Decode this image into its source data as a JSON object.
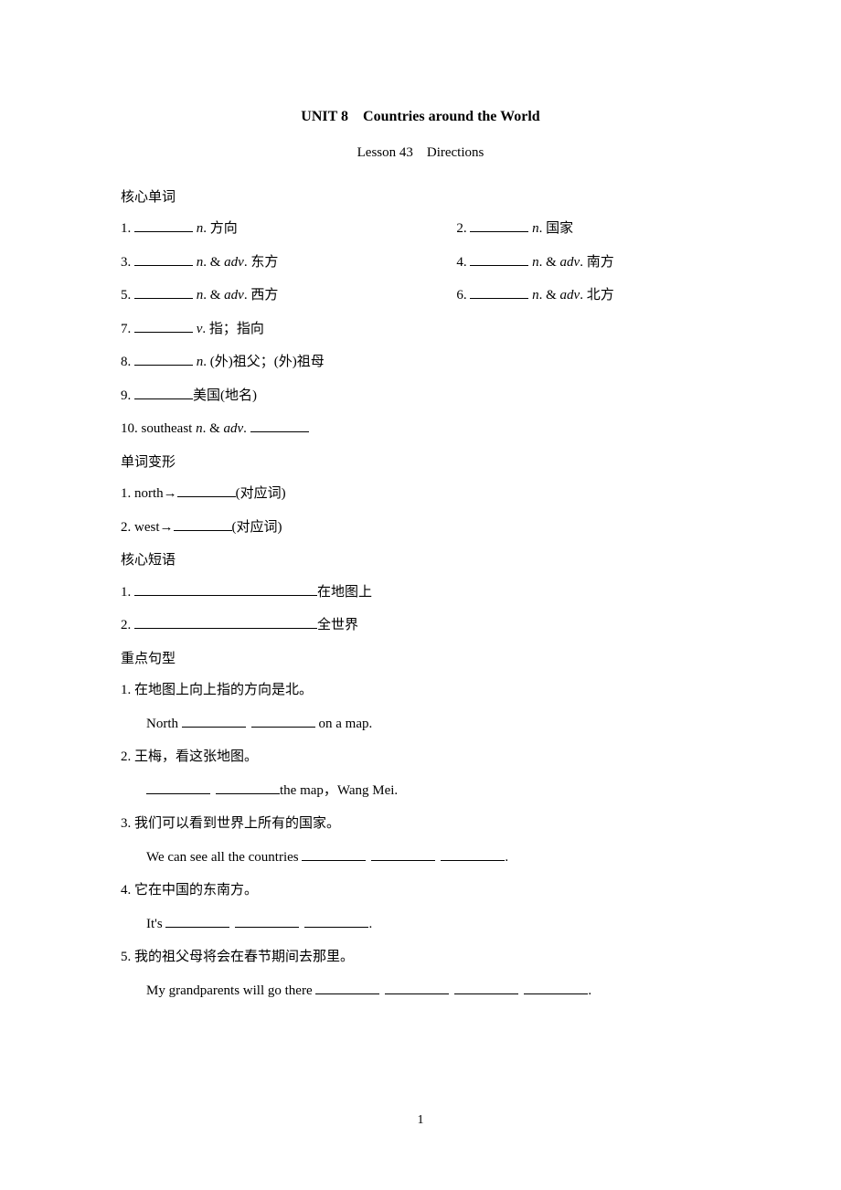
{
  "unit_title": "UNIT 8　Countries around the World",
  "lesson_title": "Lesson 43　Directions",
  "sections": {
    "vocab": "核心单词",
    "forms": "单词变形",
    "phrases": "核心短语",
    "sentences": "重点句型"
  },
  "vocab": [
    {
      "num": "1. ",
      "pos_pre": "n",
      "pos_post": ".",
      "def": " 方向"
    },
    {
      "num": "2. ",
      "pos_pre": "n",
      "pos_post": ".",
      "def": " 国家"
    },
    {
      "num": "3. ",
      "pos_pre": "n",
      "pos_post": ". & ",
      "pos2_pre": "adv",
      "pos2_post": ".",
      "def": " 东方"
    },
    {
      "num": "4. ",
      "pos_pre": "n",
      "pos_post": ". & ",
      "pos2_pre": "adv",
      "pos2_post": ".",
      "def": " 南方"
    },
    {
      "num": "5. ",
      "pos_pre": "n",
      "pos_post": ". & ",
      "pos2_pre": "adv",
      "pos2_post": ".",
      "def": " 西方"
    },
    {
      "num": "6. ",
      "pos_pre": "n",
      "pos_post": ". & ",
      "pos2_pre": "adv",
      "pos2_post": ".",
      "def": " 北方"
    },
    {
      "num": "7. ",
      "pos_pre": "v",
      "pos_post": ".",
      "def": " 指；指向"
    },
    {
      "num": "8. ",
      "pos_pre": "n",
      "pos_post": ".",
      "def": " (外)祖父；(外)祖母"
    },
    {
      "num": "9. ",
      "def": "美国(地名)"
    },
    {
      "num": "10. southeast ",
      "pos_pre": "n",
      "pos_post": ". & ",
      "pos2_pre": "adv",
      "pos2_post": ". "
    }
  ],
  "forms": [
    {
      "num": "1. north→",
      "tail": "(对应词)"
    },
    {
      "num": "2. west→",
      "tail": "(对应词)"
    }
  ],
  "phrases": [
    {
      "num": "1. ",
      "tail": "在地图上"
    },
    {
      "num": "2. ",
      "tail": "全世界"
    }
  ],
  "sentences": [
    {
      "num": "1.",
      "zh": "在地图上向上指的方向是北。",
      "en_pre": "North ",
      "blanks": 2,
      "en_post": " on a map."
    },
    {
      "num": "2.",
      "zh": "王梅，看这张地图。",
      "en_pre": "",
      "blanks": 2,
      "en_post": "the map，Wang Mei."
    },
    {
      "num": "3.",
      "zh": "我们可以看到世界上所有的国家。",
      "en_pre": "We can see all the countries ",
      "blanks": 3,
      "en_post": "."
    },
    {
      "num": "4.",
      "zh": "它在中国的东南方。",
      "en_pre": "It's ",
      "blanks": 3,
      "en_post": "."
    },
    {
      "num": "5.",
      "zh": "我的祖父母将会在春节期间去那里。",
      "en_pre": "My grandparents will go there ",
      "blanks": 4,
      "en_post": "."
    }
  ],
  "page_number": "1",
  "colors": {
    "text": "#000000",
    "background": "#ffffff"
  },
  "typography": {
    "body_fontsize": 15,
    "title_fontsize": 16,
    "title_weight": "bold",
    "font_family": "Times New Roman / SimSun"
  }
}
